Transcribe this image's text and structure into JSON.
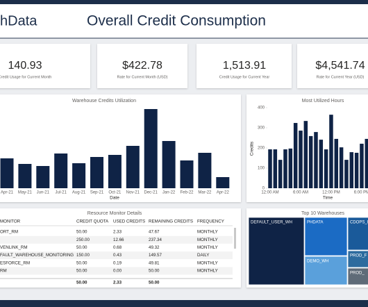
{
  "header": {
    "brand": "hData",
    "title": "Overall Credit Consumption"
  },
  "kpis": [
    {
      "value": "140.93",
      "label": "Credit Usage for Current Month"
    },
    {
      "value": "$422.78",
      "label": "Rate for Current Month (USD)"
    },
    {
      "value": "1,513.91",
      "label": "Credit Usage for Current Year"
    },
    {
      "value": "$4,541.74",
      "label": "Rate for Current Year (USD)"
    }
  ],
  "chart_data": [
    {
      "type": "bar",
      "title": "Warehouse Credits Utilization",
      "x_label": "Date",
      "categories": [
        "Apr-21",
        "May-21",
        "Jun-21",
        "Jul-21",
        "Aug-21",
        "Sep-21",
        "Oct-21",
        "Nov-21",
        "Dec-21",
        "Jan-22",
        "Feb-22",
        "Mar-22",
        "Apr-22"
      ],
      "values": [
        43,
        35,
        32,
        50,
        36,
        45,
        48,
        61,
        114,
        68,
        40,
        51,
        16
      ],
      "color": "#0f2346",
      "ylim": [
        0,
        120
      ]
    },
    {
      "type": "bar",
      "title": "Most Utilized Hours",
      "x_label": "Time",
      "y_label": "Credits",
      "categories": [
        "12:00 AM",
        null,
        null,
        null,
        null,
        null,
        "6:00 AM",
        null,
        null,
        null,
        null,
        null,
        "12:00 PM",
        null,
        null,
        null,
        null,
        null,
        "6:00 PM",
        null
      ],
      "values": [
        193,
        193,
        141,
        193,
        197,
        324,
        286,
        334,
        259,
        279,
        241,
        193,
        365,
        245,
        203,
        141,
        179,
        176,
        221,
        245
      ],
      "color": "#0f2346",
      "ylim": [
        0,
        400
      ],
      "yticks": [
        0,
        100,
        200,
        300,
        400
      ]
    }
  ],
  "table": {
    "title": "Resource Monitor Details",
    "columns": [
      "MONITOR",
      "CREDIT QUOTA",
      "USED CREDITS",
      "REMAINING CREDITS",
      "FREQUENCY"
    ],
    "rows": [
      [
        "ORT_RM",
        "50.00",
        "2.33",
        "47.67",
        "MONTHLY"
      ],
      [
        null,
        "250.00",
        "12.66",
        "237.34",
        "MONTHLY"
      ],
      [
        "VENLINK_RM",
        "50.00",
        "0.68",
        "49.32",
        "MONTHLY"
      ],
      [
        "FAULT_WAREHOUSE_MONITORING",
        "150.00",
        "0.43",
        "149.57",
        "DAILY"
      ],
      [
        "ESFORCE_RM",
        "50.00",
        "0.19",
        "49.81",
        "MONTHLY"
      ],
      [
        "RM",
        "50.00",
        "0.00",
        "50.00",
        "MONTHLY"
      ]
    ],
    "totals": [
      "50.00",
      "2.33",
      "50.00"
    ]
  },
  "treemap": {
    "title": "Top 10 Warehouses",
    "labels": [
      "DEFAULT_USER_WH",
      "PHDATA",
      "DEMO_WH",
      "CDOPS_I",
      "PROD_F",
      "PROD_"
    ]
  }
}
